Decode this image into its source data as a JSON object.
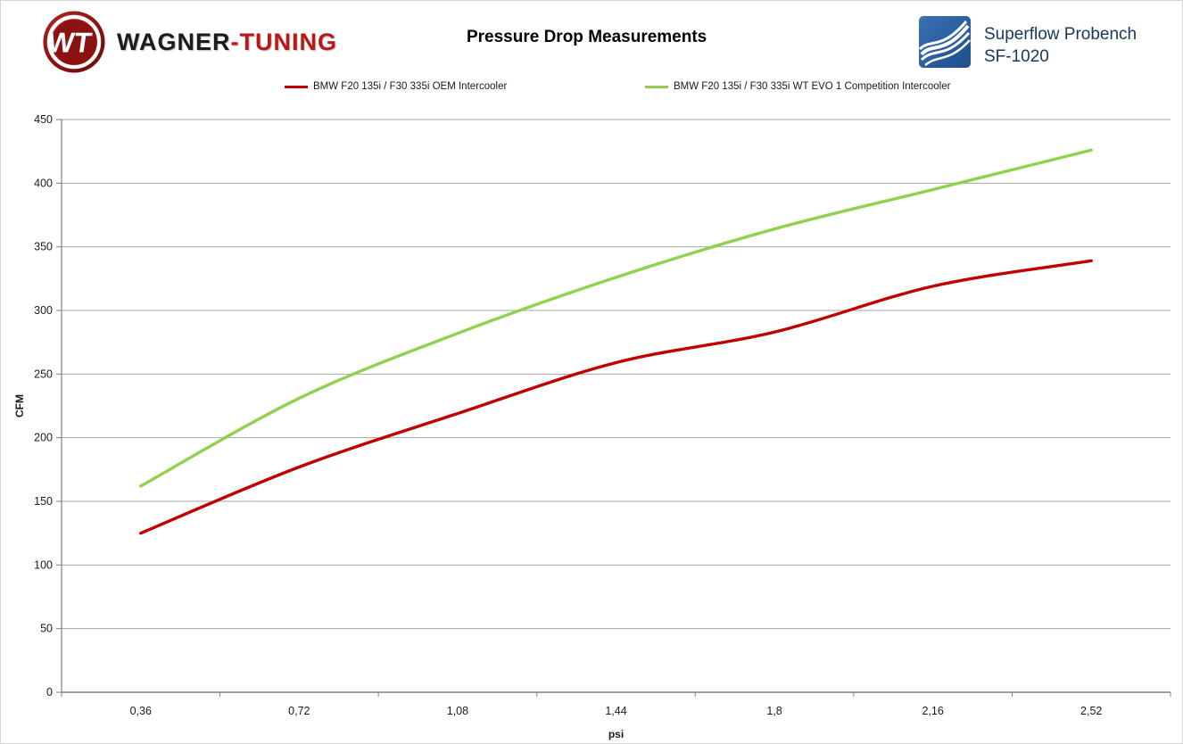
{
  "header": {
    "brand": {
      "monogram": "WT",
      "name_black": "WAGNER",
      "name_red": "-TUNING"
    },
    "title": "Pressure Drop Measurements",
    "bench": {
      "line1": "Superflow Probench",
      "line2": "SF-1020"
    }
  },
  "legend": [
    {
      "label": "BMW F20 135i / F30 335i OEM Intercooler",
      "color": "#c00000"
    },
    {
      "label": "BMW F20 135i / F30 335i WT EVO 1 Competition Intercooler",
      "color": "#92d050"
    }
  ],
  "chart_data": {
    "type": "line",
    "title": "Pressure Drop Measurements",
    "categories": [
      "0,36",
      "0,72",
      "1,08",
      "1,44",
      "1,8",
      "2,16",
      "2,52"
    ],
    "series": [
      {
        "name": "BMW F20 135i / F30 335i OEM Intercooler",
        "color": "#c00000",
        "values": [
          125,
          177,
          219,
          259,
          283,
          319,
          339
        ]
      },
      {
        "name": "BMW F20 135i / F30 335i WT EVO 1 Competition Intercooler",
        "color": "#92d050",
        "values": [
          162,
          231,
          282,
          326,
          364,
          395,
          426
        ]
      }
    ],
    "xlabel": "psi",
    "ylabel": "CFM",
    "ylim": [
      0,
      450
    ],
    "yticks": [
      0,
      50,
      100,
      150,
      200,
      250,
      300,
      350,
      400,
      450
    ],
    "grid": "horizontal",
    "legend_position": "top",
    "smooth": true,
    "colors": {
      "gridline": "#a6a6a6",
      "axis": "#808080",
      "tick_text": "#1a1a1a"
    }
  }
}
